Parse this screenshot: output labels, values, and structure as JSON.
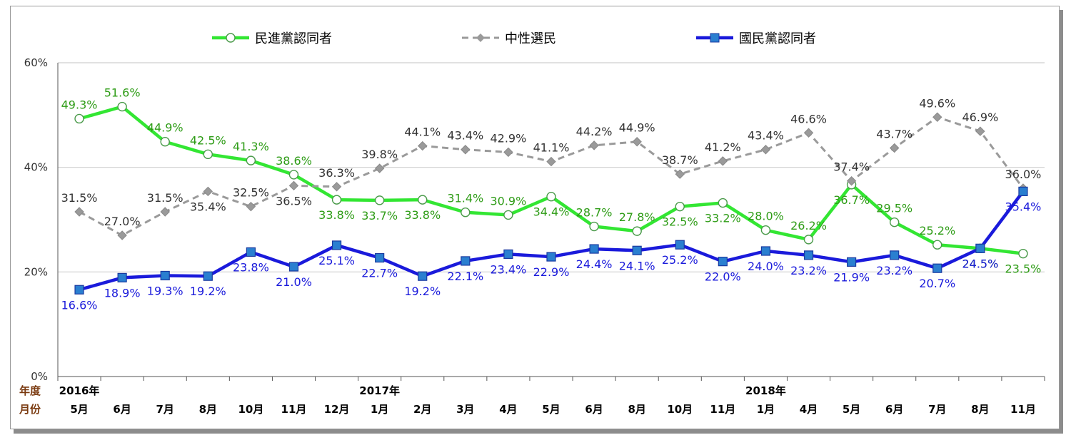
{
  "chart_data": {
    "type": "line",
    "categories": [
      "5月",
      "6月",
      "7月",
      "8月",
      "10月",
      "11月",
      "12月",
      "1月",
      "2月",
      "3月",
      "4月",
      "5月",
      "6月",
      "8月",
      "10月",
      "11月",
      "1月",
      "4月",
      "5月",
      "6月",
      "7月",
      "8月",
      "11月"
    ],
    "year_labels": [
      {
        "index": 0,
        "label": "2016年"
      },
      {
        "index": 7,
        "label": "2017年"
      },
      {
        "index": 16,
        "label": "2018年"
      }
    ],
    "row_headers": {
      "year": "年度",
      "month": "月份"
    },
    "yticks": [
      "0%",
      "20%",
      "40%",
      "60%"
    ],
    "ylim": [
      0,
      60
    ],
    "grid": true,
    "legend_position": "top",
    "series": [
      {
        "name": "民進黨認同者",
        "color": "#33e633",
        "values": [
          49.3,
          51.6,
          44.9,
          42.5,
          41.3,
          38.6,
          33.8,
          33.7,
          33.8,
          31.4,
          30.9,
          34.4,
          28.7,
          27.8,
          32.5,
          33.2,
          28.0,
          26.2,
          36.7,
          29.5,
          25.2,
          24.5,
          23.5
        ],
        "labels": [
          "49.3%",
          "51.6%",
          "44.9%",
          "42.5%",
          "41.3%",
          "38.6%",
          "33.8%",
          "33.7%",
          "33.8%",
          "31.4%",
          "30.9%",
          "34.4%",
          "28.7%",
          "27.8%",
          "32.5%",
          "33.2%",
          "28.0%",
          "26.2%",
          "36.7%",
          "29.5%",
          "25.2%",
          "24.5%",
          "23.5%"
        ]
      },
      {
        "name": "中性選民",
        "color": "#9a9a9a",
        "values": [
          31.5,
          27.0,
          31.5,
          35.4,
          32.5,
          36.5,
          36.3,
          39.8,
          44.1,
          43.4,
          42.9,
          41.1,
          44.2,
          44.9,
          38.7,
          41.2,
          43.4,
          46.6,
          37.4,
          43.7,
          49.6,
          46.9,
          36.0
        ],
        "labels": [
          "31.5%",
          "27.0%",
          "31.5%",
          "35.4%",
          "32.5%",
          "36.5%",
          "36.3%",
          "39.8%",
          "44.1%",
          "43.4%",
          "42.9%",
          "41.1%",
          "44.2%",
          "44.9%",
          "38.7%",
          "41.2%",
          "43.4%",
          "46.6%",
          "37.4%",
          "43.7%",
          "49.6%",
          "46.9%",
          "36.0%"
        ]
      },
      {
        "name": "國民黨認同者",
        "color": "#1a1adb",
        "values": [
          16.6,
          18.9,
          19.3,
          19.2,
          23.8,
          21.0,
          25.1,
          22.7,
          19.2,
          22.1,
          23.4,
          22.9,
          24.4,
          24.1,
          25.2,
          22.0,
          24.0,
          23.2,
          21.9,
          23.2,
          20.7,
          24.5,
          35.4
        ],
        "labels": [
          "16.6%",
          "18.9%",
          "19.3%",
          "19.2%",
          "23.8%",
          "21.0%",
          "25.1%",
          "22.7%",
          "19.2%",
          "22.1%",
          "23.4%",
          "22.9%",
          "24.4%",
          "24.1%",
          "25.2%",
          "22.0%",
          "24.0%",
          "23.2%",
          "21.9%",
          "23.2%",
          "20.7%",
          "24.5%",
          "35.4%"
        ]
      }
    ]
  }
}
